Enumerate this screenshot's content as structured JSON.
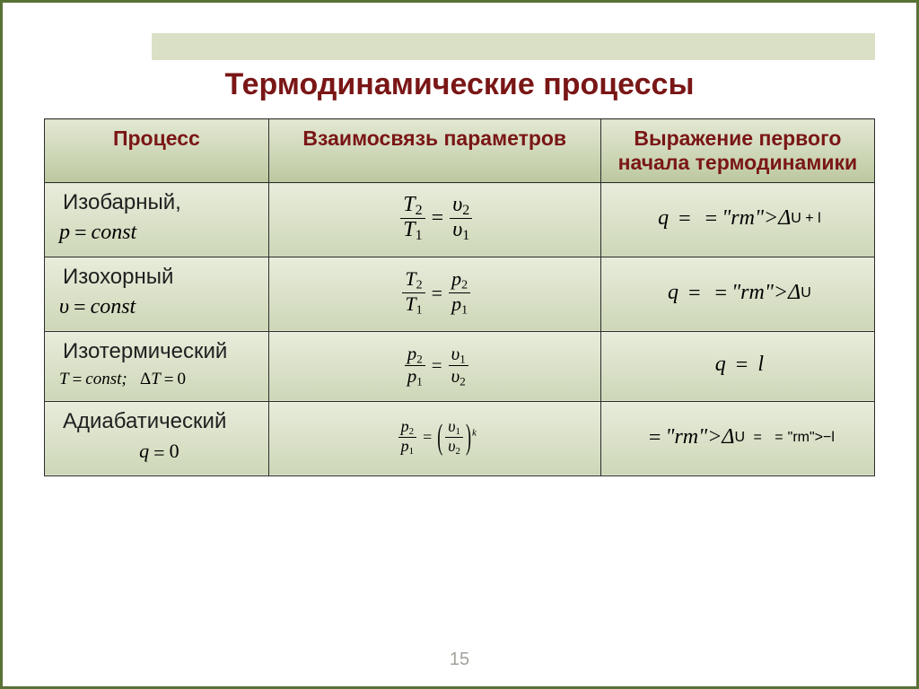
{
  "page": {
    "title": "Термодинамические процессы",
    "page_number": "15",
    "border_color": "#587236",
    "accent_color": "#7a1616",
    "header_gradient_from": "#e3e8d3",
    "header_gradient_to": "#bcc8a0",
    "cell_gradient_from": "#e8ecdb",
    "cell_gradient_to": "#cdd7b7"
  },
  "table": {
    "type": "table",
    "columns": [
      {
        "label": "Процесс",
        "width_pct": 27
      },
      {
        "label": "Взаимосвязь параметров",
        "width_pct": 40
      },
      {
        "label": "Выражение первого начала термодинамики",
        "width_pct": 33
      }
    ],
    "rows": [
      {
        "process_name": "Изобарный,",
        "condition_var": "p",
        "condition_text": "const",
        "condition_extra": "",
        "relation": {
          "left_num": "T",
          "left_num_sub": "2",
          "left_den": "T",
          "left_den_sub": "1",
          "right_num": "υ",
          "right_num_sub": "2",
          "right_den": "υ",
          "right_den_sub": "1",
          "fontsize": 24,
          "sub_fontsize": 16,
          "exponent": ""
        },
        "first_law": "q = ΔU + l",
        "first_law_fontsize": 24
      },
      {
        "process_name": "Изохорный",
        "condition_var": "υ",
        "condition_text": "const",
        "condition_extra": "",
        "relation": {
          "left_num": "T",
          "left_num_sub": "2",
          "left_den": "T",
          "left_den_sub": "1",
          "right_num": "p",
          "right_num_sub": "2",
          "right_den": "p",
          "right_den_sub": "1",
          "fontsize": 22,
          "sub_fontsize": 14,
          "exponent": ""
        },
        "first_law": "q = ΔU",
        "first_law_fontsize": 24
      },
      {
        "process_name": "Изотермический",
        "condition_var": "T",
        "condition_text": "const;",
        "condition_extra": "ΔT = 0",
        "relation": {
          "left_num": "p",
          "left_num_sub": "2",
          "left_den": "p",
          "left_den_sub": "1",
          "right_num": "υ",
          "right_num_sub": "1",
          "right_den": "υ",
          "right_den_sub": "2",
          "fontsize": 21,
          "sub_fontsize": 13,
          "exponent": ""
        },
        "first_law": "q = l",
        "first_law_fontsize": 24
      },
      {
        "process_name": "Адиабатический",
        "condition_var": "q",
        "condition_text": "0",
        "condition_extra": "",
        "relation": {
          "left_num": "p",
          "left_num_sub": "2",
          "left_den": "p",
          "left_den_sub": "1",
          "right_num": "υ",
          "right_num_sub": "1",
          "right_den": "υ",
          "right_den_sub": "2",
          "fontsize": 18,
          "sub_fontsize": 11,
          "exponent": "k"
        },
        "first_law": "ΔU = −l",
        "first_law_fontsize": 24
      }
    ]
  }
}
